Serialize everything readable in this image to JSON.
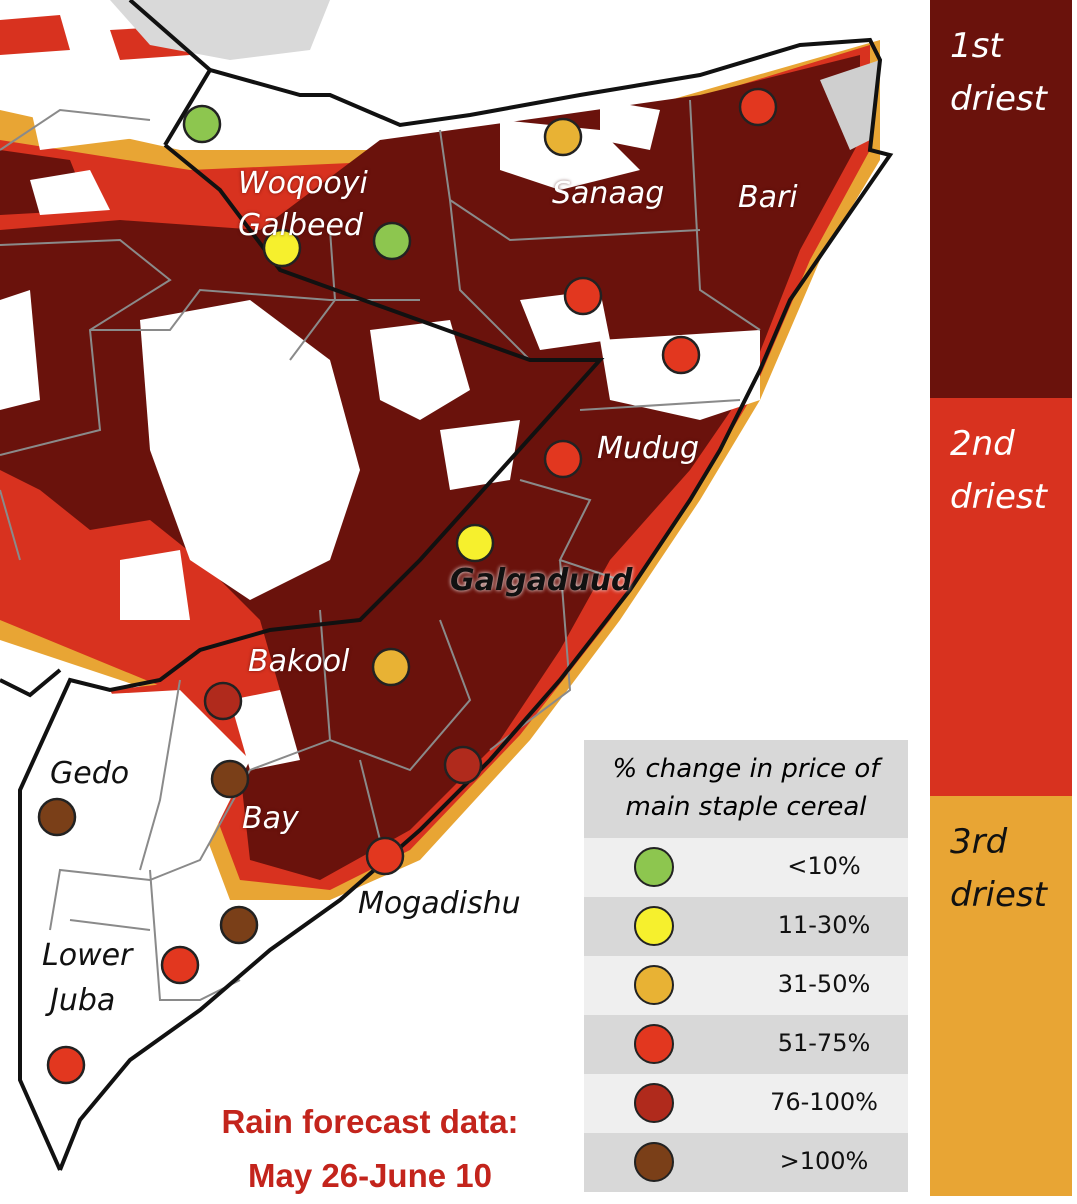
{
  "regions": {
    "woqooyi": "Woqooyi",
    "galbeed": "Galbeed",
    "sanaag": "Sanaag",
    "bari": "Bari",
    "mudug": "Mudug",
    "galgaduud": "Galgaduud",
    "bakool": "Bakool",
    "gedo": "Gedo",
    "bay": "Bay",
    "mogadishu": "Mogadishu",
    "lower": "Lower",
    "juba": "Juba"
  },
  "dryness_legend": [
    {
      "line1": "1st",
      "line2": "driest",
      "color": "#6a120c"
    },
    {
      "line1": "2nd",
      "line2": "driest",
      "color": "#d8321f"
    },
    {
      "line1": "3rd",
      "line2": "driest",
      "color": "#e8a534"
    }
  ],
  "price_legend": {
    "title_line1": "% change in price of",
    "title_line2": "main staple cereal",
    "items": [
      {
        "label": "<10%",
        "color": "#8dc64f"
      },
      {
        "label": "11-30%",
        "color": "#f6f02d"
      },
      {
        "label": "31-50%",
        "color": "#e8b234"
      },
      {
        "label": "51-75%",
        "color": "#e2371f"
      },
      {
        "label": "76-100%",
        "color": "#b02a1c"
      },
      {
        "label": ">100%",
        "color": "#7a3f18"
      }
    ]
  },
  "forecast": {
    "line1": "Rain forecast data:",
    "line2": "May 26-June 10"
  },
  "markers": [
    {
      "name": "marker-woqooyi-west",
      "category": "<10%"
    },
    {
      "name": "marker-galbeed",
      "category": "11-30%"
    },
    {
      "name": "marker-woqooyi-east",
      "category": "<10%"
    },
    {
      "name": "marker-sanaag",
      "category": "31-50%"
    },
    {
      "name": "marker-bari-north",
      "category": "51-75%"
    },
    {
      "name": "marker-nugaal",
      "category": "51-75%"
    },
    {
      "name": "marker-mudug-north",
      "category": "51-75%"
    },
    {
      "name": "marker-mudug",
      "category": "51-75%"
    },
    {
      "name": "marker-galgaduud",
      "category": "11-30%"
    },
    {
      "name": "marker-bakool",
      "category": "31-50%"
    },
    {
      "name": "marker-bakool-west",
      "category": "76-100%"
    },
    {
      "name": "marker-shabelle",
      "category": "76-100%"
    },
    {
      "name": "marker-bay",
      "category": ">100%"
    },
    {
      "name": "marker-gedo",
      "category": ">100%"
    },
    {
      "name": "marker-mogadishu",
      "category": "51-75%"
    },
    {
      "name": "marker-lower-shabelle",
      "category": ">100%"
    },
    {
      "name": "marker-middle-juba",
      "category": "51-75%"
    },
    {
      "name": "marker-lower-juba",
      "category": "51-75%"
    }
  ]
}
